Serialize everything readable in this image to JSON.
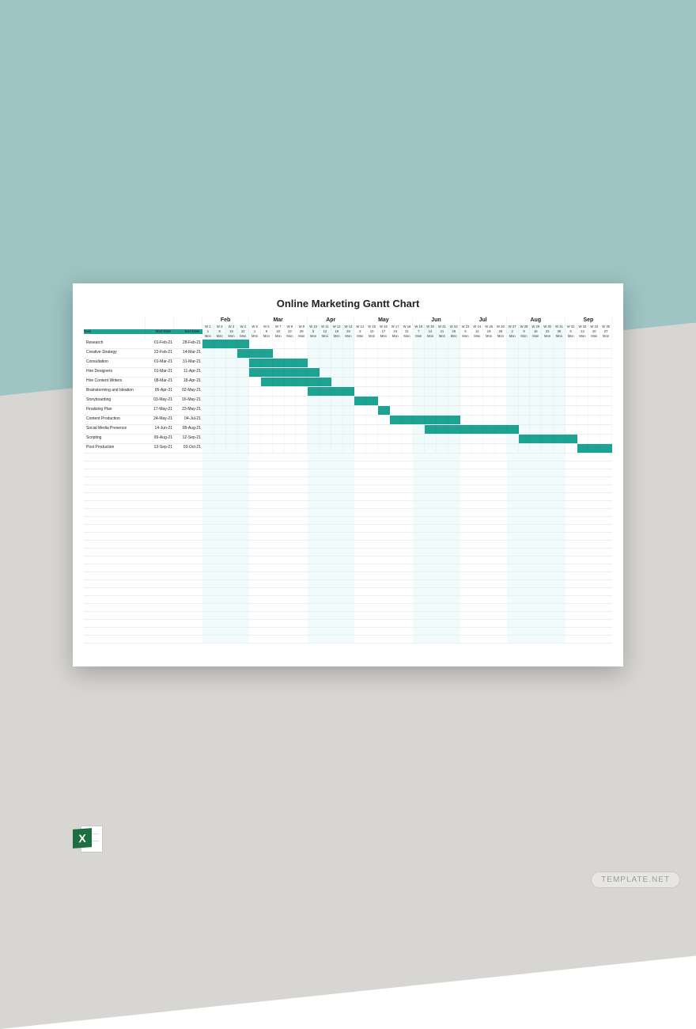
{
  "background": {
    "top_color": "#9ec4c4",
    "bottom_color": "#d8d6d2",
    "sheet_color": "#ffffff"
  },
  "watermark": "TEMPLATE.NET",
  "icon_label": "X",
  "chart": {
    "title": "Online Marketing Gantt Chart",
    "header": {
      "task": "Task",
      "start": "Start Date",
      "end": "End Date"
    },
    "colors": {
      "bar": "#1ea393",
      "header_bg": "#1ea393",
      "header_text": "#ffffff",
      "shade": "#f2fbfb",
      "grid": "#e6eeee"
    },
    "total_weeks": 35,
    "months": [
      {
        "label": "Feb",
        "start": 0,
        "span": 4
      },
      {
        "label": "Mar",
        "start": 4,
        "span": 5
      },
      {
        "label": "Apr",
        "start": 9,
        "span": 4
      },
      {
        "label": "May",
        "start": 13,
        "span": 5
      },
      {
        "label": "Jun",
        "start": 18,
        "span": 4
      },
      {
        "label": "Jul",
        "start": 22,
        "span": 4
      },
      {
        "label": "Aug",
        "start": 26,
        "span": 5
      },
      {
        "label": "Sep",
        "start": 31,
        "span": 4
      }
    ],
    "week_labels": [
      "W 1",
      "W 2",
      "W 3",
      "W 4",
      "W 5",
      "W 6",
      "W 7",
      "W 8",
      "W 9",
      "W 10",
      "W 11",
      "W 12",
      "W 13",
      "W 14",
      "W 15",
      "W 16",
      "W 17",
      "W 18",
      "W 19",
      "W 20",
      "W 21",
      "W 22",
      "W 23",
      "W 24",
      "W 25",
      "W 26",
      "W 27",
      "W 28",
      "W 29",
      "W 30",
      "W 31",
      "W 32",
      "W 33",
      "W 34",
      "W 35"
    ],
    "day_labels": [
      "1",
      "8",
      "15",
      "22",
      "1",
      "8",
      "15",
      "22",
      "29",
      "5",
      "12",
      "19",
      "26",
      "3",
      "10",
      "17",
      "24",
      "31",
      "7",
      "14",
      "21",
      "28",
      "5",
      "12",
      "19",
      "26",
      "2",
      "9",
      "16",
      "23",
      "30",
      "6",
      "13",
      "20",
      "27"
    ],
    "dow_labels": [
      "Mon",
      "Mon",
      "Mon",
      "Mon",
      "Mon",
      "Mon",
      "Mon",
      "Mon",
      "Mon",
      "Mon",
      "Mon",
      "Mon",
      "Mon",
      "Mon",
      "Mon",
      "Mon",
      "Mon",
      "Mon",
      "Mon",
      "Mon",
      "Mon",
      "Mon",
      "Mon",
      "Mon",
      "Mon",
      "Mon",
      "Mon",
      "Mon",
      "Mon",
      "Mon",
      "Mon",
      "Mon",
      "Mon",
      "Mon",
      "Mon"
    ],
    "shade_weeks": [
      0,
      1,
      2,
      3,
      9,
      10,
      11,
      12,
      18,
      19,
      20,
      21,
      26,
      27,
      28,
      29,
      30
    ],
    "tasks": [
      {
        "name": "Research",
        "start": "01-Feb-21",
        "end": "28-Feb-21",
        "bar_start": 0,
        "bar_span": 4
      },
      {
        "name": "Creative Strategy",
        "start": "22-Feb-21",
        "end": "14-Mar-21",
        "bar_start": 3,
        "bar_span": 3
      },
      {
        "name": "Consultation",
        "start": "01-Mar-21",
        "end": "31-Mar-21",
        "bar_start": 4,
        "bar_span": 5
      },
      {
        "name": "Hire Designers",
        "start": "01-Mar-21",
        "end": "11-Apr-21",
        "bar_start": 4,
        "bar_span": 6
      },
      {
        "name": "Hire Content Writers",
        "start": "08-Mar-21",
        "end": "18-Apr-21",
        "bar_start": 5,
        "bar_span": 6
      },
      {
        "name": "Brainstorming and Ideation",
        "start": "05-Apr-21",
        "end": "02-May-21",
        "bar_start": 9,
        "bar_span": 4
      },
      {
        "name": "Storyboarding",
        "start": "03-May-21",
        "end": "16-May-21",
        "bar_start": 13,
        "bar_span": 2
      },
      {
        "name": "Finalizing Plan",
        "start": "17-May-21",
        "end": "23-May-21",
        "bar_start": 15,
        "bar_span": 1
      },
      {
        "name": "Content Production",
        "start": "24-May-21",
        "end": "04-Jul-21",
        "bar_start": 16,
        "bar_span": 6
      },
      {
        "name": "Social Media Presence",
        "start": "14-Jun-21",
        "end": "08-Aug-21",
        "bar_start": 19,
        "bar_span": 8
      },
      {
        "name": "Scripting",
        "start": "09-Aug-21",
        "end": "12-Sep-21",
        "bar_start": 27,
        "bar_span": 5
      },
      {
        "name": "Post Production",
        "start": "13-Sep-21",
        "end": "03-Oct-21",
        "bar_start": 32,
        "bar_span": 3
      }
    ],
    "empty_rows": 24
  }
}
